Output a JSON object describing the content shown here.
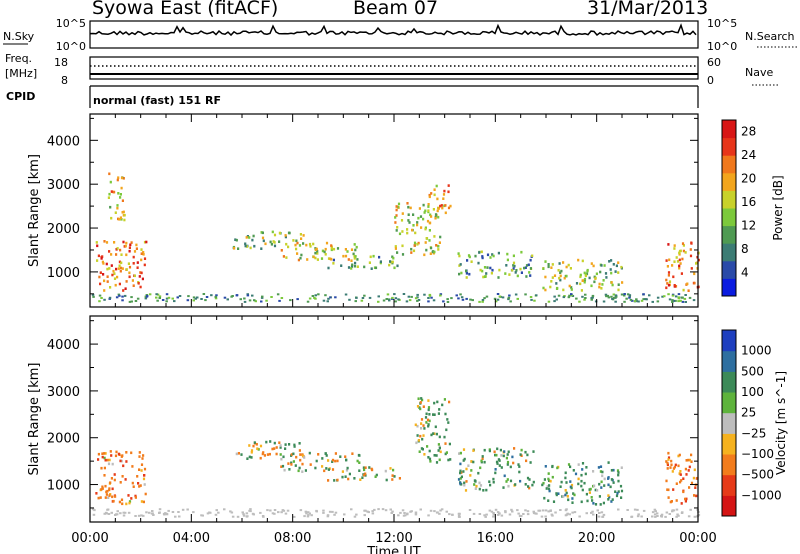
{
  "header": {
    "station": "Syowa East (fitACF)",
    "beam": "Beam 07",
    "date": "31/Mar/2013"
  },
  "strips": {
    "nsky_label": "N.Sky",
    "nsky_ticks": [
      "10^5",
      "10^0"
    ],
    "nsearch_label": "N.Search",
    "nsearch_ticks": [
      "10^5",
      "10^0"
    ],
    "freq_label_1": "Freq.",
    "freq_label_2": "[MHz]",
    "freq_ticks": [
      "18",
      "8"
    ],
    "nave_label": "Nave",
    "nave_ticks": [
      "60",
      "0"
    ],
    "cpid_label": "CPID",
    "cpid_text": "normal (fast) 151 RF"
  },
  "chart_data": [
    {
      "type": "heatmap",
      "ylabel": "Slant Range [km]",
      "xlabel": "",
      "xlim": [
        "00:00",
        "24:00"
      ],
      "ylim": [
        200,
        4600
      ],
      "y_ticks": [
        "1000",
        "2000",
        "3000",
        "4000"
      ],
      "colorbar": {
        "label": "Power [dB]",
        "ticks": [
          "4",
          "8",
          "12",
          "16",
          "20",
          "24",
          "28"
        ],
        "colors": [
          "#0b1ce0",
          "#2a4aa8",
          "#3c7c74",
          "#4f9a52",
          "#7cc93b",
          "#c8d12a",
          "#f2a51d",
          "#f0781c",
          "#e7351a",
          "#d81616"
        ]
      },
      "patches": [
        {
          "t0": 0.2,
          "t1": 2.2,
          "r0": 600,
          "r1": 1750,
          "v": 22
        },
        {
          "t0": 0.7,
          "t1": 1.4,
          "r0": 2200,
          "r1": 3300,
          "v": 18
        },
        {
          "t0": 5.6,
          "t1": 8.4,
          "r0": 1550,
          "r1": 1950,
          "v": 14
        },
        {
          "t0": 7.5,
          "t1": 10.6,
          "r0": 1300,
          "r1": 1700,
          "v": 16
        },
        {
          "t0": 9.2,
          "t1": 12.2,
          "r0": 1100,
          "r1": 1400,
          "v": 12
        },
        {
          "t0": 12.0,
          "t1": 13.8,
          "r0": 1400,
          "r1": 2600,
          "v": 16
        },
        {
          "t0": 13.3,
          "t1": 14.2,
          "r0": 2300,
          "r1": 3000,
          "v": 20
        },
        {
          "t0": 14.5,
          "t1": 17.5,
          "r0": 900,
          "r1": 1500,
          "v": 10
        },
        {
          "t0": 17.8,
          "t1": 21.0,
          "r0": 600,
          "r1": 1300,
          "v": 14
        },
        {
          "t0": 22.7,
          "t1": 24.0,
          "r0": 600,
          "r1": 1700,
          "v": 22
        }
      ]
    },
    {
      "type": "heatmap",
      "ylabel": "Slant Range [km]",
      "xlabel": "Time UT",
      "xlim": [
        "00:00",
        "24:00"
      ],
      "ylim": [
        200,
        4600
      ],
      "x_ticks": [
        "00:00",
        "04:00",
        "08:00",
        "12:00",
        "16:00",
        "20:00",
        "00:00"
      ],
      "y_ticks": [
        "1000",
        "2000",
        "3000",
        "4000"
      ],
      "colorbar": {
        "label": "Velocity [m s^-1]",
        "ticks": [
          "1000",
          "500",
          "100",
          "25",
          "−25",
          "−100",
          "−500",
          "−1000"
        ],
        "colors": [
          "#1e3fbf",
          "#2e6fa0",
          "#3c8a58",
          "#5eb33c",
          "#bdbdbd",
          "#f5b21f",
          "#f27c1c",
          "#e63a18",
          "#d41414"
        ]
      },
      "patches": [
        {
          "t0": 0.2,
          "t1": 2.2,
          "r0": 600,
          "r1": 1750,
          "v": -300
        },
        {
          "t0": 5.6,
          "t1": 8.4,
          "r0": 1550,
          "r1": 1950,
          "v": 0
        },
        {
          "t0": 7.5,
          "t1": 10.6,
          "r0": 1300,
          "r1": 1700,
          "v": 0
        },
        {
          "t0": 9.2,
          "t1": 12.2,
          "r0": 1100,
          "r1": 1400,
          "v": 0
        },
        {
          "t0": 12.8,
          "t1": 14.2,
          "r0": 1500,
          "r1": 2900,
          "v": 150
        },
        {
          "t0": 14.5,
          "t1": 17.5,
          "r0": 900,
          "r1": 1800,
          "v": 200
        },
        {
          "t0": 17.8,
          "t1": 21.0,
          "r0": 600,
          "r1": 1500,
          "v": 300
        },
        {
          "t0": 22.7,
          "t1": 24.0,
          "r0": 600,
          "r1": 1700,
          "v": -400
        }
      ]
    }
  ]
}
